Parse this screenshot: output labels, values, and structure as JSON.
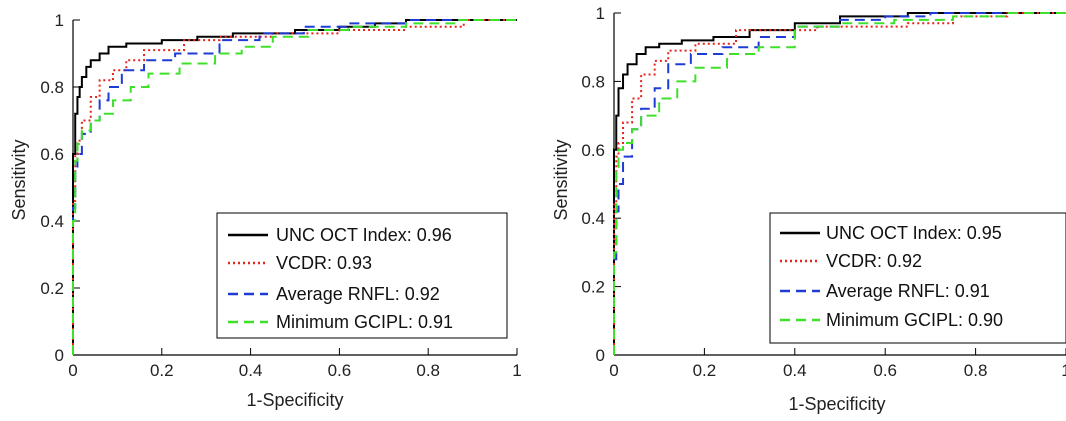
{
  "chart_data": [
    {
      "type": "line",
      "title": "",
      "xlabel": "1-Specificity",
      "ylabel": "Sensitivity",
      "xlim": [
        0,
        1
      ],
      "ylim": [
        0,
        1
      ],
      "xticks": [
        "0",
        "0.2",
        "0.4",
        "0.6",
        "0.8",
        "1"
      ],
      "yticks": [
        "0",
        "0.2",
        "0.4",
        "0.6",
        "0.8",
        "1"
      ],
      "grid": false,
      "legend_position": "bottom-right",
      "series": [
        {
          "name": "UNC OCT Index: 0.96",
          "color": "#000000",
          "dash": "solid",
          "points": [
            [
              0,
              0
            ],
            [
              0.005,
              0.6
            ],
            [
              0.01,
              0.72
            ],
            [
              0.015,
              0.77
            ],
            [
              0.02,
              0.8
            ],
            [
              0.03,
              0.83
            ],
            [
              0.04,
              0.86
            ],
            [
              0.06,
              0.88
            ],
            [
              0.08,
              0.9
            ],
            [
              0.12,
              0.92
            ],
            [
              0.2,
              0.93
            ],
            [
              0.28,
              0.94
            ],
            [
              0.36,
              0.95
            ],
            [
              0.5,
              0.96
            ],
            [
              0.6,
              0.97
            ],
            [
              0.68,
              0.98
            ],
            [
              0.75,
              0.99
            ],
            [
              0.86,
              1.0
            ],
            [
              1,
              1
            ]
          ]
        },
        {
          "name": "VCDR: 0.93",
          "color": "#e8231a",
          "dash": "dotted",
          "points": [
            [
              0,
              0
            ],
            [
              0.005,
              0.46
            ],
            [
              0.01,
              0.6
            ],
            [
              0.02,
              0.64
            ],
            [
              0.04,
              0.7
            ],
            [
              0.06,
              0.77
            ],
            [
              0.09,
              0.82
            ],
            [
              0.12,
              0.85
            ],
            [
              0.16,
              0.88
            ],
            [
              0.25,
              0.91
            ],
            [
              0.33,
              0.94
            ],
            [
              0.45,
              0.95
            ],
            [
              0.6,
              0.96
            ],
            [
              0.75,
              0.97
            ],
            [
              0.88,
              0.98
            ],
            [
              0.97,
              1.0
            ],
            [
              1,
              1
            ]
          ]
        },
        {
          "name": "Average RNFL: 0.92",
          "color": "#1f3bd6",
          "dash": "dashed",
          "points": [
            [
              0,
              0
            ],
            [
              0.005,
              0.44
            ],
            [
              0.01,
              0.55
            ],
            [
              0.02,
              0.6
            ],
            [
              0.04,
              0.66
            ],
            [
              0.06,
              0.7
            ],
            [
              0.08,
              0.76
            ],
            [
              0.11,
              0.8
            ],
            [
              0.16,
              0.85
            ],
            [
              0.23,
              0.88
            ],
            [
              0.33,
              0.9
            ],
            [
              0.42,
              0.94
            ],
            [
              0.52,
              0.96
            ],
            [
              0.62,
              0.98
            ],
            [
              0.75,
              0.99
            ],
            [
              0.86,
              1.0
            ],
            [
              1,
              1
            ]
          ]
        },
        {
          "name": "Minimum GCIPL: 0.91",
          "color": "#3ee02a",
          "dash": "dashed",
          "points": [
            [
              0,
              0
            ],
            [
              0.005,
              0.4
            ],
            [
              0.01,
              0.58
            ],
            [
              0.02,
              0.63
            ],
            [
              0.04,
              0.67
            ],
            [
              0.06,
              0.7
            ],
            [
              0.09,
              0.72
            ],
            [
              0.13,
              0.76
            ],
            [
              0.17,
              0.8
            ],
            [
              0.24,
              0.84
            ],
            [
              0.32,
              0.87
            ],
            [
              0.38,
              0.9
            ],
            [
              0.45,
              0.92
            ],
            [
              0.53,
              0.95
            ],
            [
              0.62,
              0.97
            ],
            [
              0.75,
              0.98
            ],
            [
              0.87,
              0.99
            ],
            [
              1,
              1
            ]
          ]
        }
      ]
    },
    {
      "type": "line",
      "title": "",
      "xlabel": "1-Specificity",
      "ylabel": "Sensitivity",
      "xlim": [
        0,
        1
      ],
      "ylim": [
        0,
        1
      ],
      "xticks": [
        "0",
        "0.2",
        "0.4",
        "0.6",
        "0.8",
        "1"
      ],
      "yticks": [
        "0",
        "0.2",
        "0.4",
        "0.6",
        "0.8",
        "1"
      ],
      "grid": false,
      "legend_position": "bottom-right",
      "series": [
        {
          "name": "UNC OCT Index: 0.95",
          "color": "#000000",
          "dash": "solid",
          "points": [
            [
              0,
              0
            ],
            [
              0.005,
              0.6
            ],
            [
              0.01,
              0.7
            ],
            [
              0.02,
              0.78
            ],
            [
              0.03,
              0.82
            ],
            [
              0.05,
              0.85
            ],
            [
              0.07,
              0.88
            ],
            [
              0.1,
              0.9
            ],
            [
              0.15,
              0.91
            ],
            [
              0.22,
              0.92
            ],
            [
              0.3,
              0.93
            ],
            [
              0.4,
              0.95
            ],
            [
              0.5,
              0.97
            ],
            [
              0.65,
              0.99
            ],
            [
              0.75,
              1.0
            ],
            [
              1,
              1
            ]
          ]
        },
        {
          "name": "VCDR: 0.92",
          "color": "#e8231a",
          "dash": "dotted",
          "points": [
            [
              0,
              0
            ],
            [
              0.005,
              0.44
            ],
            [
              0.01,
              0.58
            ],
            [
              0.02,
              0.62
            ],
            [
              0.04,
              0.68
            ],
            [
              0.06,
              0.75
            ],
            [
              0.09,
              0.82
            ],
            [
              0.12,
              0.86
            ],
            [
              0.18,
              0.89
            ],
            [
              0.27,
              0.91
            ],
            [
              0.35,
              0.95
            ],
            [
              0.45,
              0.95
            ],
            [
              0.55,
              0.96
            ],
            [
              0.65,
              0.96
            ],
            [
              0.75,
              0.97
            ],
            [
              0.87,
              0.99
            ],
            [
              1,
              1
            ]
          ]
        },
        {
          "name": "Average RNFL: 0.91",
          "color": "#1f3bd6",
          "dash": "dashed",
          "points": [
            [
              0,
              0
            ],
            [
              0.005,
              0.28
            ],
            [
              0.01,
              0.42
            ],
            [
              0.02,
              0.5
            ],
            [
              0.04,
              0.58
            ],
            [
              0.06,
              0.66
            ],
            [
              0.09,
              0.72
            ],
            [
              0.12,
              0.78
            ],
            [
              0.17,
              0.85
            ],
            [
              0.24,
              0.88
            ],
            [
              0.32,
              0.9
            ],
            [
              0.4,
              0.93
            ],
            [
              0.5,
              0.96
            ],
            [
              0.6,
              0.98
            ],
            [
              0.7,
              0.99
            ],
            [
              0.85,
              1.0
            ],
            [
              1,
              1
            ]
          ]
        },
        {
          "name": "Minimum GCIPL: 0.90",
          "color": "#3ee02a",
          "dash": "dashed",
          "points": [
            [
              0,
              0
            ],
            [
              0.005,
              0.3
            ],
            [
              0.01,
              0.55
            ],
            [
              0.02,
              0.6
            ],
            [
              0.04,
              0.62
            ],
            [
              0.06,
              0.66
            ],
            [
              0.1,
              0.7
            ],
            [
              0.14,
              0.75
            ],
            [
              0.18,
              0.8
            ],
            [
              0.25,
              0.84
            ],
            [
              0.32,
              0.88
            ],
            [
              0.4,
              0.9
            ],
            [
              0.5,
              0.96
            ],
            [
              0.62,
              0.97
            ],
            [
              0.75,
              0.98
            ],
            [
              0.87,
              0.99
            ],
            [
              1,
              1
            ]
          ]
        }
      ]
    }
  ]
}
